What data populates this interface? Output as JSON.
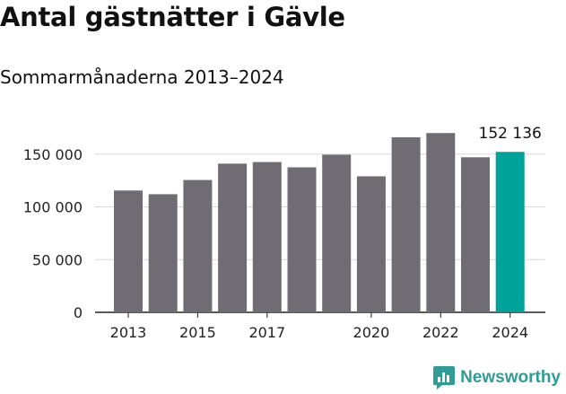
{
  "header": {
    "title": "Antal gästnätter i Gävle",
    "subtitle": "Sommarmånaderna 2013–2024"
  },
  "brand": {
    "name": "Newsworthy",
    "color": "#2f9c96",
    "icon": "chat-bar-chart-icon"
  },
  "chart_data": {
    "type": "bar",
    "title": "Antal gästnätter i Gävle",
    "subtitle": "Sommarmånaderna 2013–2024",
    "categories": [
      "2013",
      "2014",
      "2015",
      "2016",
      "2017",
      "2018",
      "2019",
      "2020",
      "2021",
      "2022",
      "2023",
      "2024"
    ],
    "x_tick_labels": [
      "2013",
      "",
      "2015",
      "",
      "2017",
      "",
      "",
      "2020",
      "",
      "2022",
      "",
      "2024"
    ],
    "values": [
      115500,
      112000,
      125500,
      141000,
      142500,
      137500,
      149500,
      129000,
      166000,
      170000,
      147000,
      152136
    ],
    "ylim": [
      0,
      180000
    ],
    "y_ticks": [
      0,
      50000,
      100000,
      150000
    ],
    "y_tick_labels": [
      "0",
      "50 000",
      "100 000",
      "150 000"
    ],
    "xlabel": "",
    "ylabel": "",
    "grid": true,
    "highlight": {
      "category": "2024",
      "label": "152 136"
    },
    "colors": {
      "bar": "#6f6d73",
      "highlight": "#00a39a",
      "grid": "#d8d8d8",
      "axis": "#222222"
    }
  }
}
